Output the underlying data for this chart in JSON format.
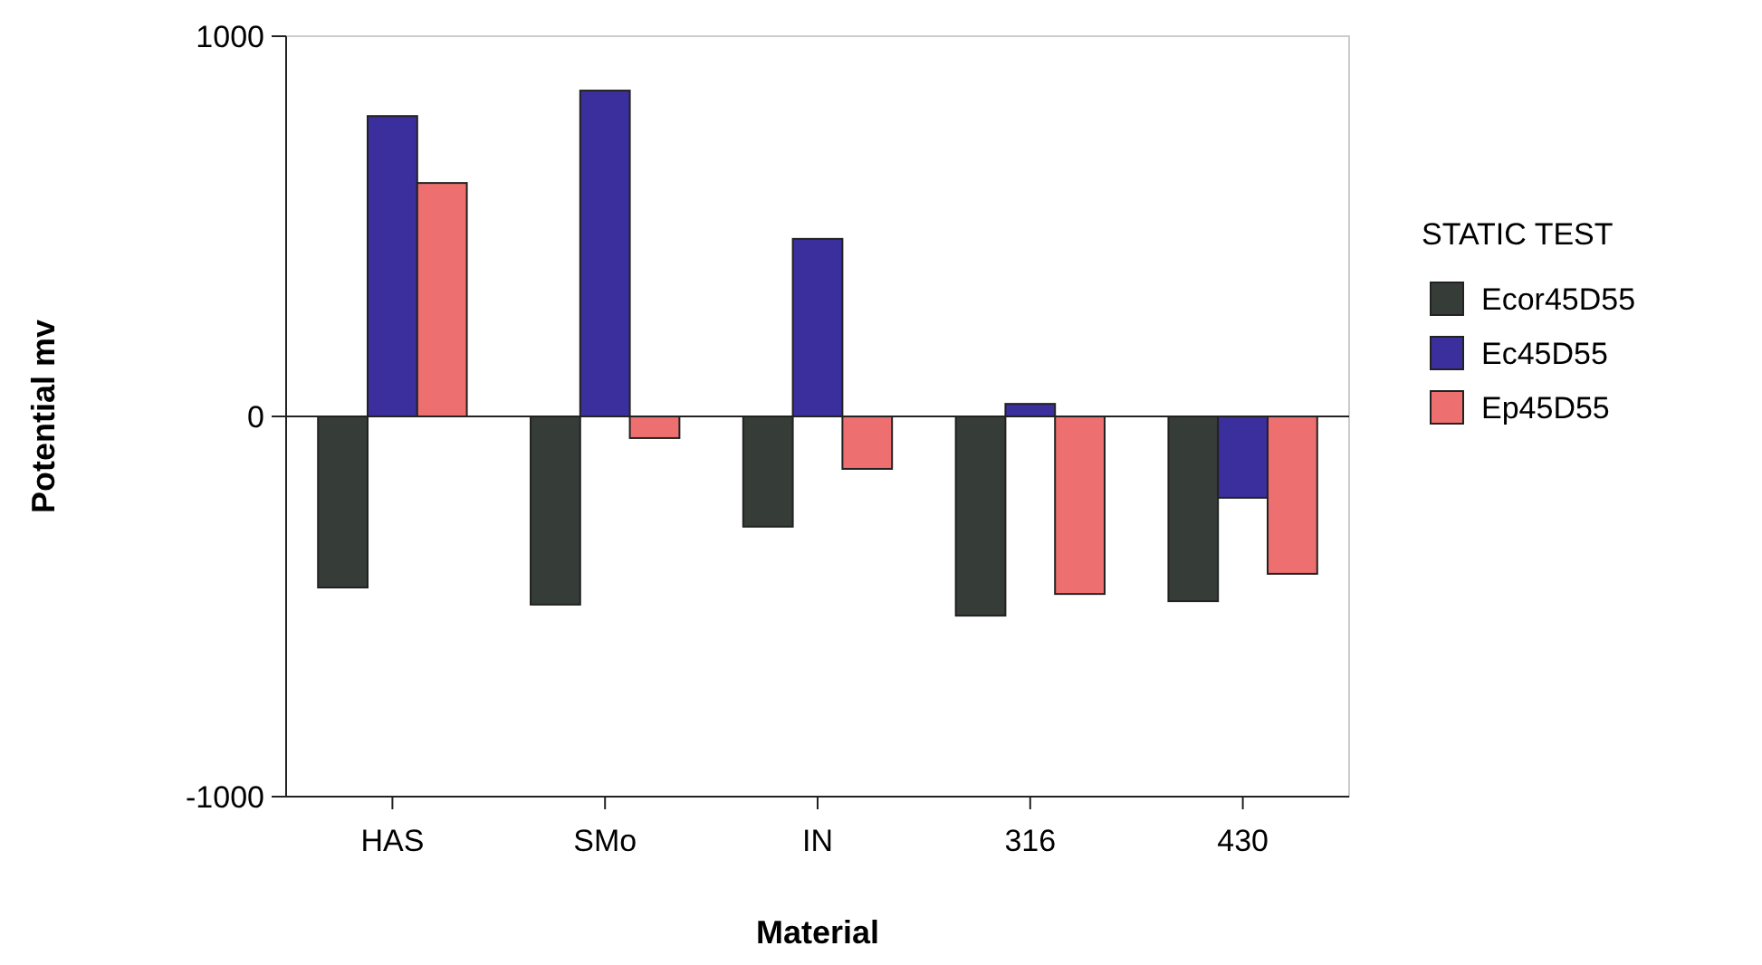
{
  "chart_data": {
    "type": "bar",
    "xlabel": "Material",
    "ylabel": "Potential mv",
    "legend_title": "STATIC TEST",
    "legend": "right",
    "categories": [
      "HAS",
      "SMo",
      "IN",
      "316",
      "430"
    ],
    "ylim": [
      -1000,
      1000
    ],
    "ref_lines": [
      {
        "axis": "y",
        "value": 0,
        "color": "#222222"
      }
    ],
    "yticks": [
      -1000,
      0,
      1000
    ],
    "series": [
      {
        "name": "Ecor45D55",
        "color": "#363c38",
        "values": [
          -450,
          -495,
          -290,
          -524,
          -486
        ]
      },
      {
        "name": "Ec45D55",
        "color": "#3b2f9e",
        "values": [
          790,
          857,
          467,
          33,
          -214
        ]
      },
      {
        "name": "Ep45D55",
        "color": "#ee6f6f",
        "values": [
          614,
          -57,
          -138,
          -467,
          -414
        ]
      }
    ]
  }
}
